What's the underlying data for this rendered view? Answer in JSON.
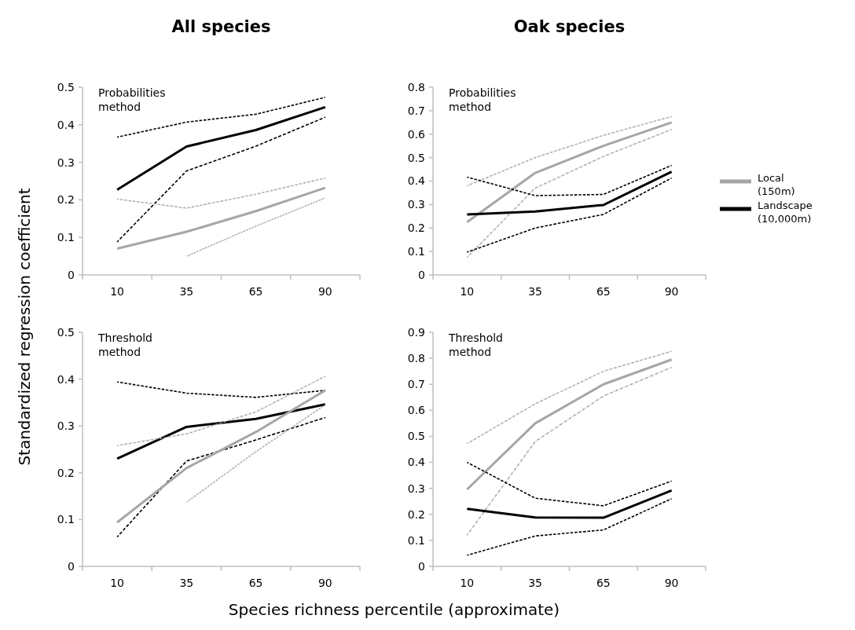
{
  "chart_data": [
    {
      "type": "line",
      "title": "All species",
      "ylabel": "Standardized regression coefficient",
      "annotations": [
        "Probabilities method"
      ],
      "categories": [
        "10",
        "35",
        "65",
        "90"
      ],
      "ylim": [
        0,
        0.5
      ],
      "yticks": [
        0,
        0.1,
        0.2,
        0.3,
        0.4,
        0.5
      ],
      "series": [
        {
          "color": "#000000",
          "line_style": "solid",
          "values": [
            0.227,
            0.342,
            0.386,
            0.447
          ]
        },
        {
          "color": "#000000",
          "line_style": "dashed",
          "values": [
            0.367,
            0.407,
            0.428,
            0.473
          ]
        },
        {
          "color": "#000000",
          "line_style": "dashed",
          "values": [
            0.088,
            0.277,
            0.343,
            0.42
          ]
        },
        {
          "color": "#a6a6a6",
          "line_style": "solid",
          "values": [
            0.07,
            0.115,
            0.17,
            0.232
          ]
        },
        {
          "color": "#a6a6a6",
          "line_style": "dashdot",
          "values": [
            0.202,
            0.178,
            0.215,
            0.258
          ]
        },
        {
          "color": "#a6a6a6",
          "line_style": "dashdot",
          "values": [
            null,
            0.05,
            0.13,
            0.205
          ]
        }
      ]
    },
    {
      "type": "line",
      "title": "Oak species",
      "legend": "right",
      "annotations": [
        "Probabilities method"
      ],
      "categories": [
        "10",
        "35",
        "65",
        "90"
      ],
      "ylim": [
        0,
        0.8
      ],
      "yticks": [
        0,
        0.1,
        0.2,
        0.3,
        0.4,
        0.5,
        0.6,
        0.7,
        0.8
      ],
      "series": [
        {
          "name": "Local (150m)",
          "color": "#a6a6a6",
          "line_style": "solid",
          "values": [
            0.225,
            0.435,
            0.55,
            0.65
          ]
        },
        {
          "color": "#a6a6a6",
          "line_style": "dashdot",
          "values": [
            0.38,
            0.5,
            0.595,
            0.675
          ]
        },
        {
          "color": "#a6a6a6",
          "line_style": "dashdot",
          "values": [
            0.075,
            0.37,
            0.505,
            0.62
          ]
        },
        {
          "name": "Landscape (10,000m)",
          "color": "#000000",
          "line_style": "solid",
          "values": [
            0.258,
            0.27,
            0.298,
            0.44
          ]
        },
        {
          "color": "#000000",
          "line_style": "dashed",
          "values": [
            0.417,
            0.338,
            0.343,
            0.467
          ]
        },
        {
          "color": "#000000",
          "line_style": "dashed",
          "values": [
            0.097,
            0.2,
            0.258,
            0.413
          ]
        }
      ]
    },
    {
      "type": "line",
      "xlabel": "Species richness percentile (approximate)",
      "annotations": [
        "Threshold method"
      ],
      "categories": [
        "10",
        "35",
        "65",
        "90"
      ],
      "ylim": [
        0,
        0.5
      ],
      "yticks": [
        0,
        0.1,
        0.2,
        0.3,
        0.4,
        0.5
      ],
      "series": [
        {
          "color": "#000000",
          "line_style": "solid",
          "values": [
            0.23,
            0.298,
            0.315,
            0.346
          ]
        },
        {
          "color": "#000000",
          "line_style": "dashed",
          "values": [
            0.394,
            0.37,
            0.361,
            0.376
          ]
        },
        {
          "color": "#000000",
          "line_style": "dashed",
          "values": [
            0.063,
            0.225,
            0.27,
            0.318
          ]
        },
        {
          "color": "#a6a6a6",
          "line_style": "solid",
          "values": [
            0.094,
            0.21,
            0.287,
            0.376
          ]
        },
        {
          "color": "#a6a6a6",
          "line_style": "dashdot",
          "values": [
            0.258,
            0.283,
            0.33,
            0.406
          ]
        },
        {
          "color": "#a6a6a6",
          "line_style": "dashdot",
          "values": [
            null,
            0.137,
            0.245,
            0.345
          ]
        }
      ]
    },
    {
      "type": "line",
      "annotations": [
        "Threshold method"
      ],
      "categories": [
        "10",
        "35",
        "65",
        "90"
      ],
      "ylim": [
        0,
        0.9
      ],
      "yticks": [
        0,
        0.1,
        0.2,
        0.3,
        0.4,
        0.5,
        0.6,
        0.7,
        0.8,
        0.9
      ],
      "series": [
        {
          "color": "#a6a6a6",
          "line_style": "solid",
          "values": [
            0.296,
            0.55,
            0.7,
            0.795
          ]
        },
        {
          "color": "#a6a6a6",
          "line_style": "dashdot",
          "values": [
            0.472,
            0.625,
            0.75,
            0.827
          ]
        },
        {
          "color": "#a6a6a6",
          "line_style": "dashdot",
          "values": [
            0.12,
            0.48,
            0.655,
            0.765
          ]
        },
        {
          "color": "#000000",
          "line_style": "solid",
          "values": [
            0.221,
            0.188,
            0.187,
            0.292
          ]
        },
        {
          "color": "#000000",
          "line_style": "dashed",
          "values": [
            0.4,
            0.262,
            0.233,
            0.328
          ]
        },
        {
          "color": "#000000",
          "line_style": "dashed",
          "values": [
            0.043,
            0.117,
            0.14,
            0.26
          ]
        }
      ]
    }
  ]
}
